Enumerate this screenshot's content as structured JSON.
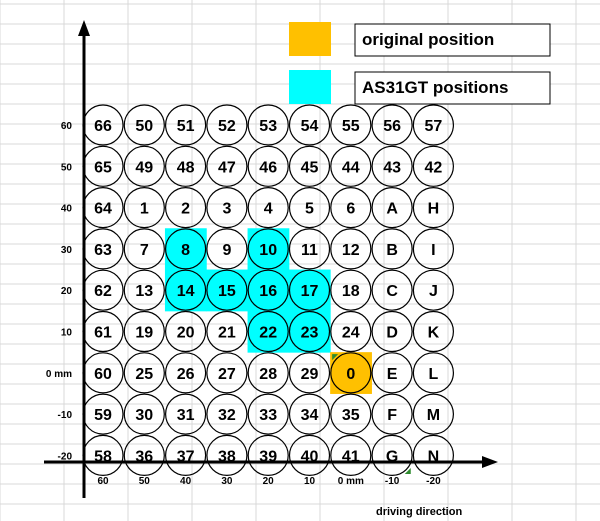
{
  "legend": {
    "original_label": "original position",
    "original_color": "#ffc000",
    "as31gt_label": "AS31GT positions",
    "as31gt_color": "#00ffff"
  },
  "y_axis_labels": [
    "60",
    "50",
    "40",
    "30",
    "20",
    "10",
    "0 mm",
    "-10",
    "-20"
  ],
  "x_axis_labels": [
    "60",
    "50",
    "40",
    "30",
    "20",
    "10",
    "0 mm",
    "-10",
    "-20"
  ],
  "x_axis_caption": "driving direction",
  "grid": [
    [
      "66",
      "50",
      "51",
      "52",
      "53",
      "54",
      "55",
      "56",
      "57"
    ],
    [
      "65",
      "49",
      "48",
      "47",
      "46",
      "45",
      "44",
      "43",
      "42"
    ],
    [
      "64",
      "1",
      "2",
      "3",
      "4",
      "5",
      "6",
      "A",
      "H"
    ],
    [
      "63",
      "7",
      "8",
      "9",
      "10",
      "11",
      "12",
      "B",
      "I"
    ],
    [
      "62",
      "13",
      "14",
      "15",
      "16",
      "17",
      "18",
      "C",
      "J"
    ],
    [
      "61",
      "19",
      "20",
      "21",
      "22",
      "23",
      "24",
      "D",
      "K"
    ],
    [
      "60",
      "25",
      "26",
      "27",
      "28",
      "29",
      "0",
      "E",
      "L"
    ],
    [
      "59",
      "30",
      "31",
      "32",
      "33",
      "34",
      "35",
      "F",
      "M"
    ],
    [
      "58",
      "36",
      "37",
      "38",
      "39",
      "40",
      "41",
      "G",
      "N"
    ]
  ],
  "as31gt_positions": [
    "8",
    "10",
    "14",
    "15",
    "16",
    "17",
    "22",
    "23"
  ],
  "original_positions": [
    "0"
  ],
  "colors": {
    "circle_stroke": "#000000",
    "axis": "#000000",
    "grid_line": "#d9d9d9",
    "accent_green": "#2e8b2e"
  }
}
